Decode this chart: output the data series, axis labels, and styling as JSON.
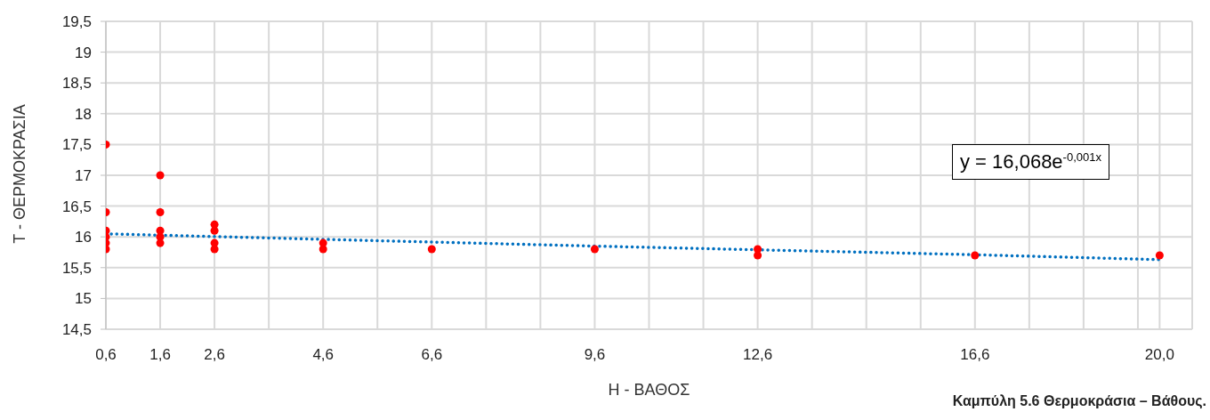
{
  "chart_data": {
    "type": "scatter",
    "xlabel": "Η - ΒΑΘΟΣ",
    "ylabel": "Τ - ΘΕΡΜΟΚΡΑΣΙΑ",
    "annotations": [
      "y = 16,068e$^{-0,001x}$",
      "Καμπύλη 5.6 Θερμοκράσια – Βάθους."
    ],
    "xlim": [
      0.6,
      20.6
    ],
    "xticks": [
      {
        "value": 0.6,
        "label": "0,6"
      },
      {
        "value": 1.6,
        "label": "1,6"
      },
      {
        "value": 2.6,
        "label": "2,6"
      },
      {
        "value": 3.6,
        "label": null
      },
      {
        "value": 4.6,
        "label": "4,6"
      },
      {
        "value": 5.6,
        "label": null
      },
      {
        "value": 6.6,
        "label": "6,6"
      },
      {
        "value": 7.6,
        "label": null
      },
      {
        "value": 8.6,
        "label": null
      },
      {
        "value": 9.6,
        "label": "9,6"
      },
      {
        "value": 10.6,
        "label": null
      },
      {
        "value": 11.6,
        "label": null
      },
      {
        "value": 12.6,
        "label": "12,6"
      },
      {
        "value": 13.6,
        "label": null
      },
      {
        "value": 14.6,
        "label": null
      },
      {
        "value": 15.6,
        "label": null
      },
      {
        "value": 16.6,
        "label": "16,6"
      },
      {
        "value": 17.6,
        "label": null
      },
      {
        "value": 18.6,
        "label": null
      },
      {
        "value": 19.6,
        "label": null
      },
      {
        "value": 20,
        "label": "20,0"
      },
      {
        "value": 20.6,
        "label": null
      }
    ],
    "ylim": [
      14.5,
      19.5
    ],
    "yticks": [
      {
        "value": 14.5,
        "label": "14,5"
      },
      15,
      {
        "value": 15.5,
        "label": "15,5"
      },
      16,
      {
        "value": 16.5,
        "label": "16,5"
      },
      17,
      {
        "value": 17.5,
        "label": "17,5"
      },
      18,
      {
        "value": 18.5,
        "label": "18,5"
      },
      19,
      {
        "value": 19.5,
        "label": "19,5"
      }
    ],
    "grid": true,
    "series": [
      {
        "marker": "circle",
        "color": "#ff0000",
        "x": [
          0.6,
          0.6,
          0.6,
          0.6,
          0.6,
          0.6,
          1.6,
          1.6,
          1.6,
          1.6,
          1.6,
          2.6,
          2.6,
          2.6,
          2.6,
          4.6,
          4.6,
          6.6,
          9.6,
          12.6,
          12.6,
          16.6,
          20
        ],
        "values": [
          17.5,
          16.4,
          16.1,
          16.0,
          15.9,
          15.8,
          17.0,
          16.4,
          16.1,
          16.0,
          15.9,
          16.2,
          16.1,
          15.9,
          15.8,
          15.9,
          15.8,
          15.8,
          15.8,
          15.8,
          15.7,
          15.7,
          15.7
        ]
      },
      {
        "type": "line",
        "color": "#0070c0",
        "line_style": "dotted",
        "x": [
          0.6,
          4.6,
          9.6,
          12.6,
          16.6,
          20
        ],
        "values": [
          16.05,
          15.96,
          15.85,
          15.79,
          15.71,
          15.63
        ]
      }
    ]
  }
}
